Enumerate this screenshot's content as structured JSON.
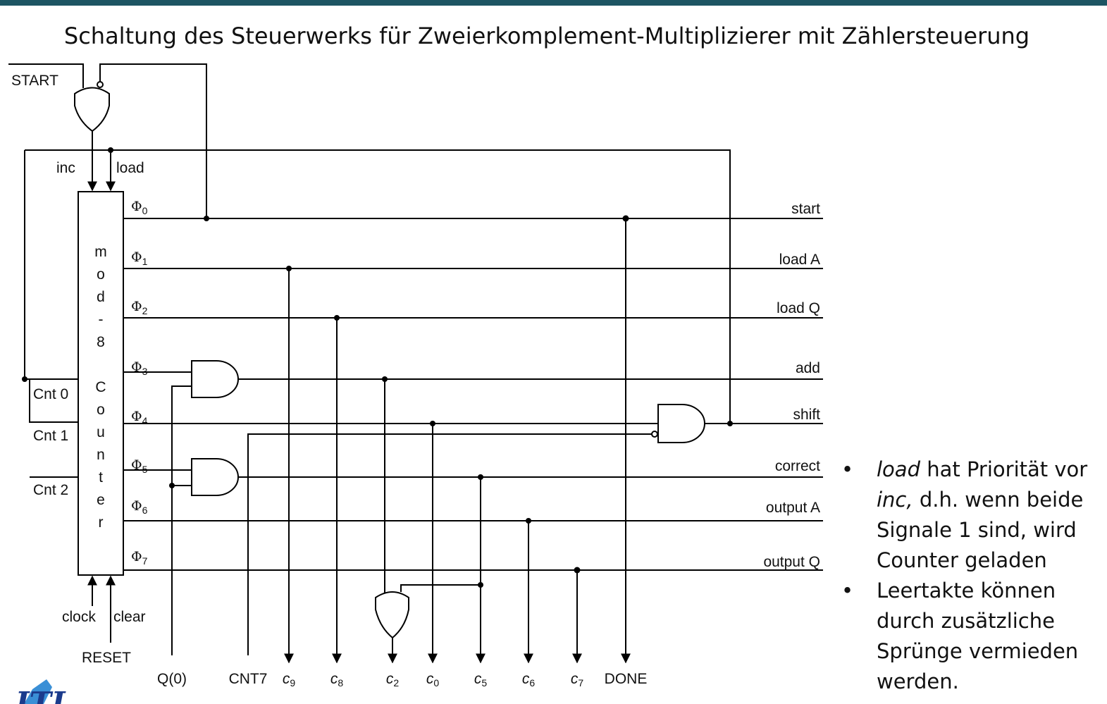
{
  "title": "Schaltung des Steuerwerks für Zweierkomplement-Multiplizierer mit Zählersteuerung",
  "counter": {
    "chars": [
      "m",
      "o",
      "d",
      "-",
      "8",
      "C",
      "o",
      "u",
      "n",
      "t",
      "e",
      "r"
    ],
    "inc_label": "inc",
    "load_label": "load",
    "clock_label": "clock",
    "clear_label": "clear",
    "reset_label": "RESET",
    "start_label": "START",
    "cnt0": "Cnt 0",
    "cnt1": "Cnt 1",
    "cnt2": "Cnt 2"
  },
  "phases": [
    {
      "sym": "Φ",
      "idx": "0",
      "signal": "start"
    },
    {
      "sym": "Φ",
      "idx": "1",
      "signal": "load A"
    },
    {
      "sym": "Φ",
      "idx": "2",
      "signal": "load Q"
    },
    {
      "sym": "Φ",
      "idx": "3",
      "signal": "add"
    },
    {
      "sym": "Φ",
      "idx": "4",
      "signal": "shift"
    },
    {
      "sym": "Φ",
      "idx": "5",
      "signal": "correct"
    },
    {
      "sym": "Φ",
      "idx": "6",
      "signal": "output A"
    },
    {
      "sym": "Φ",
      "idx": "7",
      "signal": "output Q"
    }
  ],
  "bottom": {
    "q0": "Q(0)",
    "cnt7": "CNT7",
    "c9": "c",
    "c9i": "9",
    "c8": "c",
    "c8i": "8",
    "c2": "c",
    "c2i": "2",
    "c0": "c",
    "c0i": "0",
    "c5": "c",
    "c5i": "5",
    "c6": "c",
    "c6i": "6",
    "c7": "c",
    "c7i": "7",
    "done": "DONE"
  },
  "notes": {
    "b1_load": "load",
    "b1_a": " hat Priorität vor ",
    "b1_inc": "inc,",
    "b1_b": " d.h. wenn beide Signale 1 sind, wird Counter geladen",
    "b2": "Leertakte können durch zusätzliche Sprünge vermieden werden."
  },
  "logo": "ITI"
}
